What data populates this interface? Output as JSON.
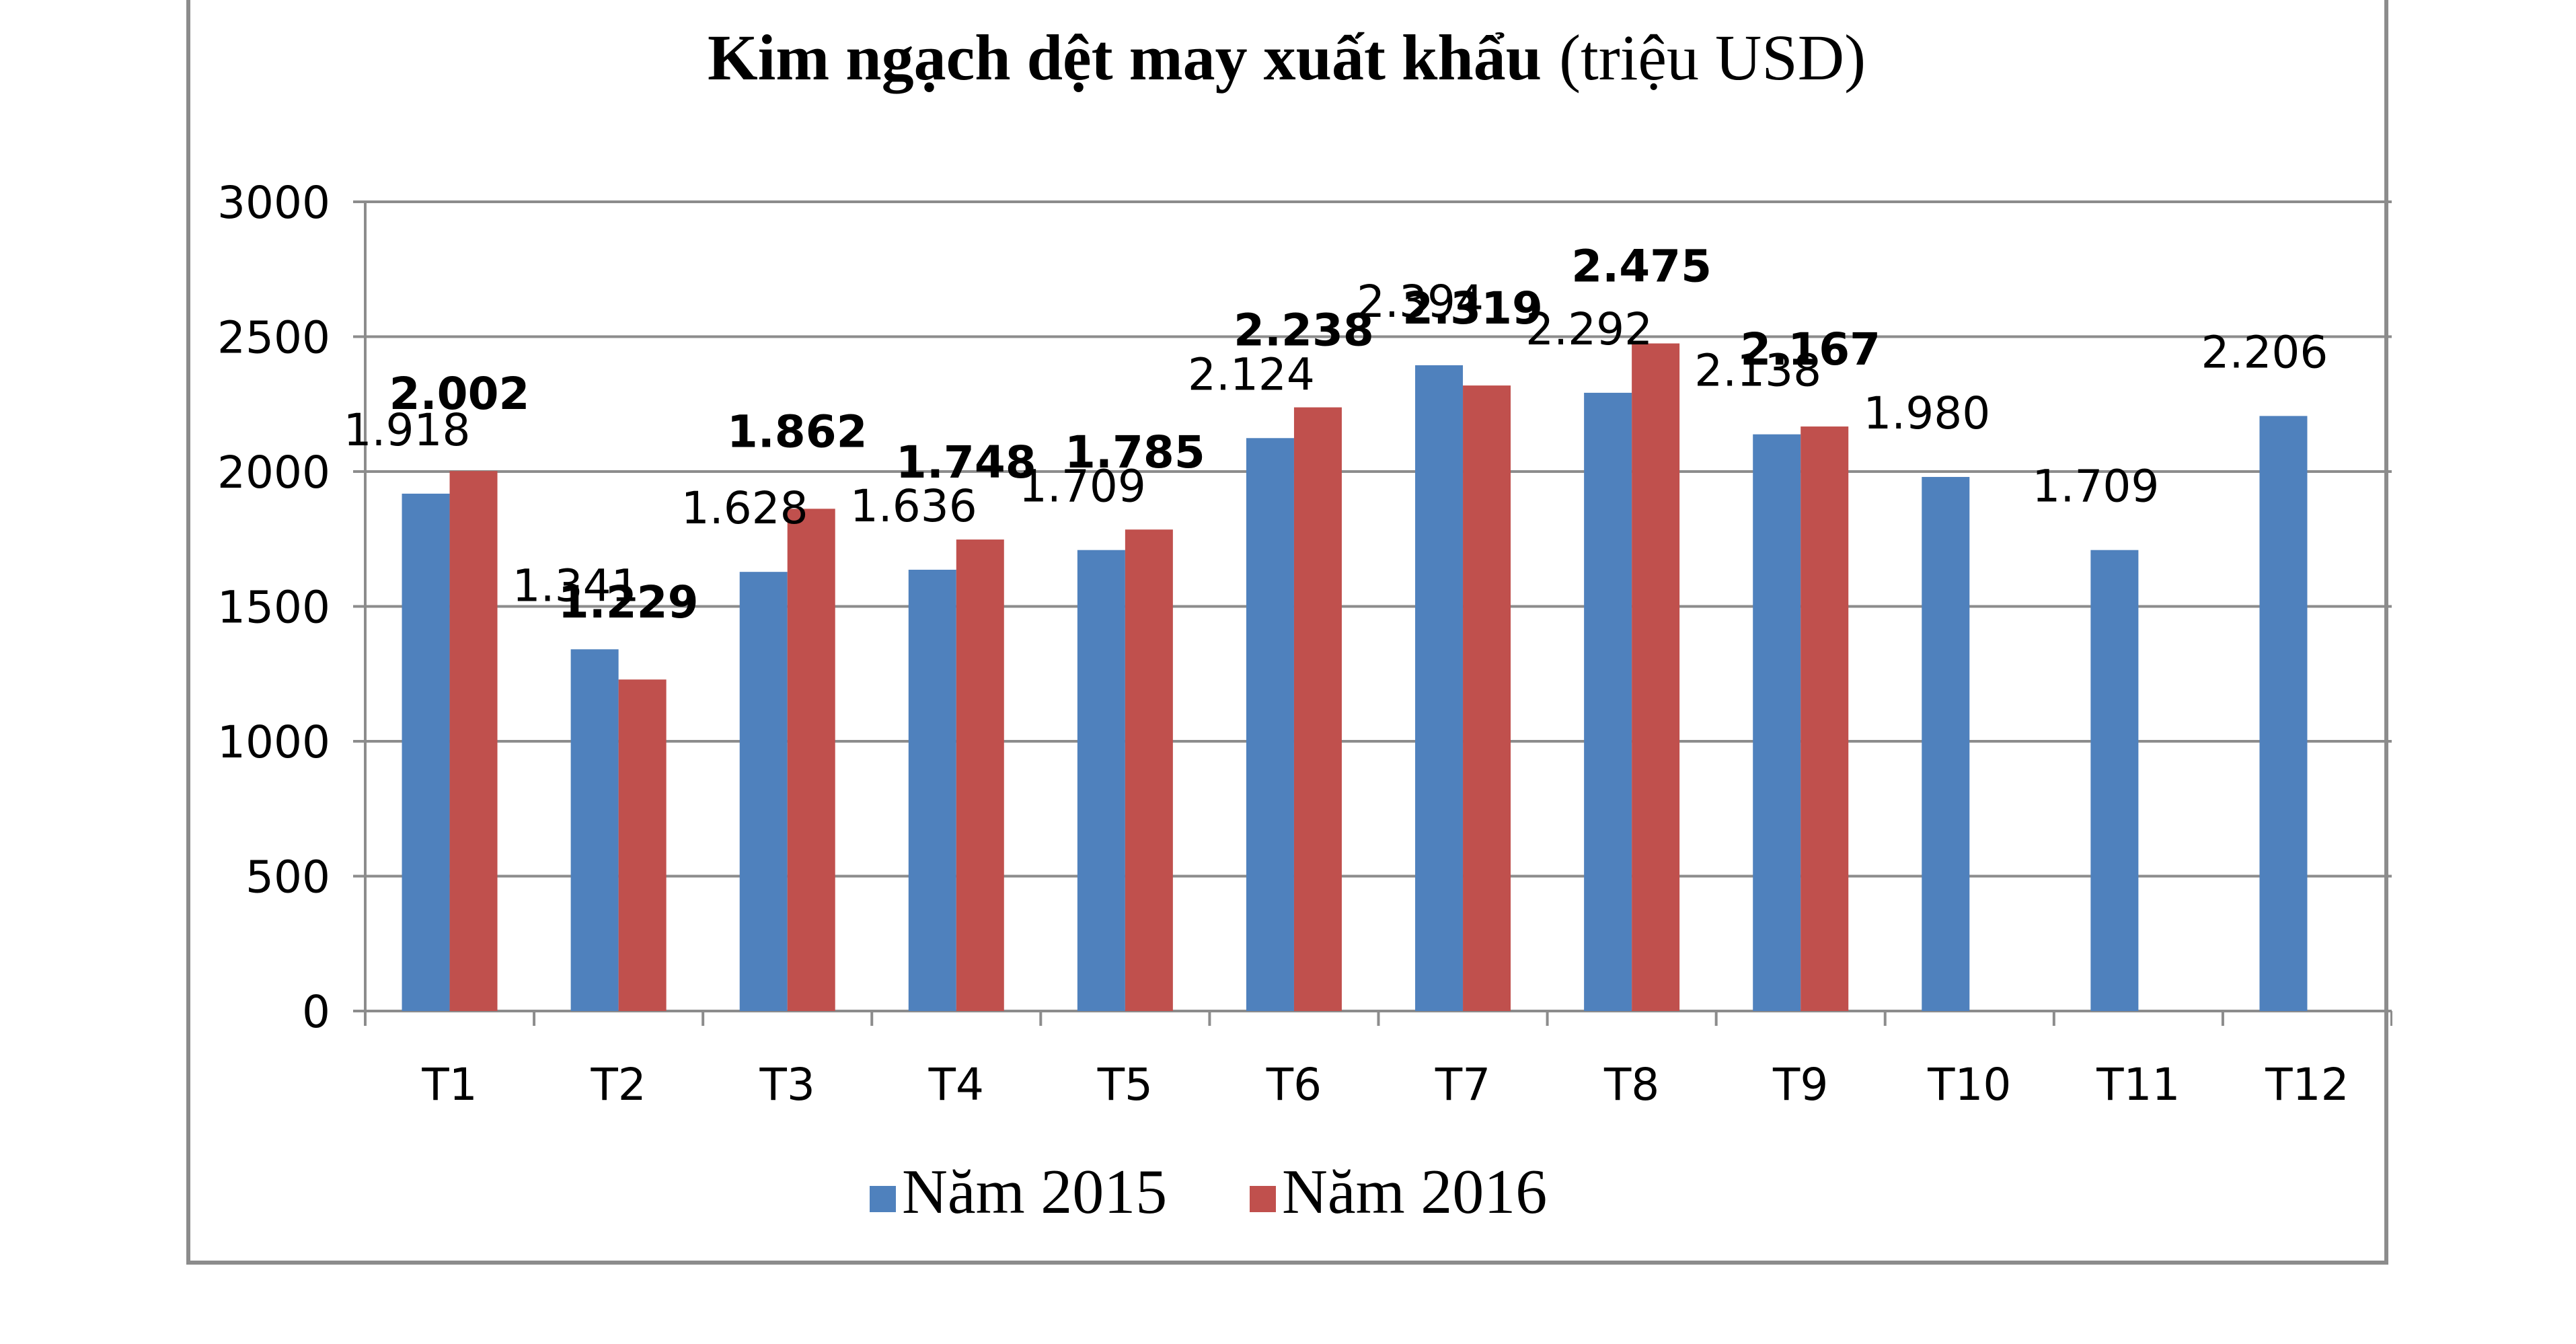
{
  "chart_data": {
    "type": "bar",
    "title": "Kim ngạch dệt may xuất khẩu",
    "title_unit": "(triệu USD)",
    "categories": [
      "T1",
      "T2",
      "T3",
      "T4",
      "T5",
      "T6",
      "T7",
      "T8",
      "T9",
      "T10",
      "T11",
      "T12"
    ],
    "series": [
      {
        "name": "Năm 2015",
        "color": "#4F81BD",
        "values": [
          1918,
          1341,
          1628,
          1636,
          1709,
          2124,
          2394,
          2292,
          2138,
          1980,
          1709,
          2206
        ],
        "labels": [
          "1.918",
          "1.341",
          "1.628",
          "1.636",
          "1.709",
          "2.124",
          "2.394",
          "2.292",
          "2.138",
          "1.980",
          "1.709",
          "2.206"
        ]
      },
      {
        "name": "Năm 2016",
        "color": "#C0504D",
        "values": [
          2002,
          1229,
          1862,
          1748,
          1785,
          2238,
          2319,
          2475,
          2167,
          null,
          null,
          null
        ],
        "labels": [
          "2.002",
          "1.229",
          "1.862",
          "1.748",
          "1.785",
          "2.238",
          "2.319",
          "2.475",
          "2.167",
          "",
          "",
          ""
        ]
      }
    ],
    "yticks": [
      "0",
      "500",
      "1000",
      "1500",
      "2000",
      "2500",
      "3000"
    ],
    "ylim": [
      0,
      3000
    ],
    "grid": true,
    "legend_position": "bottom"
  }
}
